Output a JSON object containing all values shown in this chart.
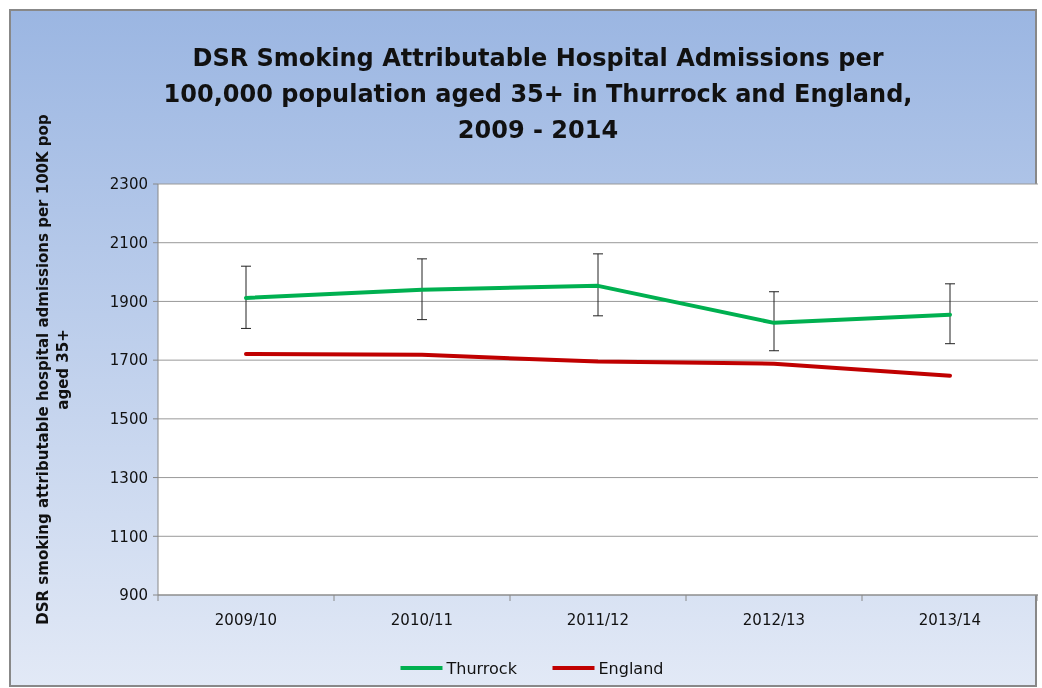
{
  "chart_data": {
    "type": "line",
    "title": "DSR Smoking Attributable Hospital Admissions per 100,000 population aged 35+ in Thurrock and England, 2009 - 2014",
    "ylabel": "DSR smoking attributable hospital admissions per 100K pop aged 35+",
    "categories": [
      "2009/10",
      "2010/11",
      "2011/12",
      "2012/13",
      "2013/14"
    ],
    "series": [
      {
        "name": "Thurrock",
        "color": "#00b050",
        "values": [
          1912,
          1940,
          1953,
          1827,
          1855
        ],
        "errors": [
          [
            1808,
            2020
          ],
          [
            1838,
            2045
          ],
          [
            1851,
            2062
          ],
          [
            1732,
            1933
          ],
          [
            1756,
            1960
          ]
        ]
      },
      {
        "name": "England",
        "color": "#c00000",
        "values": [
          1721,
          1718,
          1695,
          1688,
          1647
        ]
      }
    ],
    "ylim": [
      900,
      2300
    ],
    "yticks": [
      900,
      1100,
      1300,
      1500,
      1700,
      1900,
      2100,
      2300
    ],
    "grid": "y",
    "legend": "bottom",
    "marker": "none",
    "line_style": "solid"
  }
}
